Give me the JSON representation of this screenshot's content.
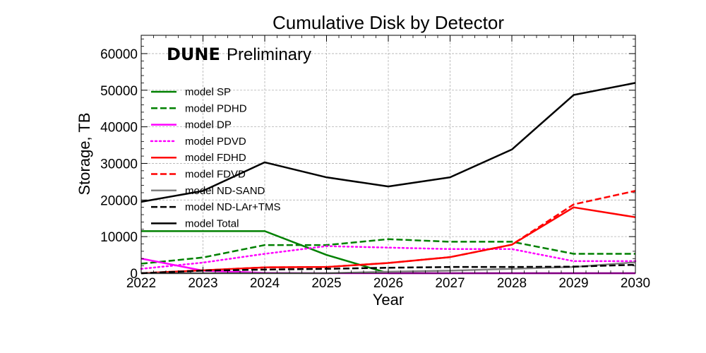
{
  "chart_data": {
    "type": "line",
    "title": "Cumulative Disk by Detector",
    "watermark_bold": "DUNE",
    "watermark_rest": "Preliminary",
    "xlabel": "Year",
    "ylabel": "Storage, TB",
    "xlim": [
      2022,
      2030
    ],
    "ylim": [
      0,
      65000
    ],
    "x_ticks": [
      "2022",
      "2023",
      "2024",
      "2025",
      "2026",
      "2027",
      "2028",
      "2029",
      "2030"
    ],
    "y_ticks": [
      "0",
      "10000",
      "20000",
      "30000",
      "40000",
      "50000",
      "60000"
    ],
    "grid": true,
    "legend_position": "upper-left",
    "x": [
      2022,
      2023,
      2024,
      2025,
      2026,
      2027,
      2028,
      2029,
      2030
    ],
    "series": [
      {
        "name": "model SP",
        "color": "#008000",
        "dash": "solid",
        "values": [
          11500,
          11500,
          11500,
          5000,
          0,
          0,
          0,
          0,
          0
        ]
      },
      {
        "name": "model PDHD",
        "color": "#008000",
        "dash": "dashed",
        "values": [
          2600,
          4300,
          7700,
          7700,
          9300,
          8600,
          8600,
          5300,
          5300
        ]
      },
      {
        "name": "model DP",
        "color": "#ff00ff",
        "dash": "solid",
        "values": [
          4000,
          700,
          100,
          0,
          0,
          0,
          0,
          0,
          0
        ]
      },
      {
        "name": "model PDVD",
        "color": "#ff00ff",
        "dash": "dotted",
        "values": [
          1200,
          2900,
          5300,
          7400,
          7000,
          6600,
          6600,
          3300,
          3300
        ]
      },
      {
        "name": "model FDHD",
        "color": "#ff0000",
        "dash": "solid",
        "values": [
          0,
          800,
          1600,
          1700,
          2800,
          4400,
          7800,
          18000,
          15300
        ]
      },
      {
        "name": "model FDVD",
        "color": "#ff0000",
        "dash": "dashed",
        "values": [
          0,
          800,
          1600,
          1700,
          2800,
          4400,
          7800,
          18800,
          22500
        ]
      },
      {
        "name": "model ND-SAND",
        "color": "#808080",
        "dash": "solid",
        "values": [
          0,
          0,
          0,
          0,
          400,
          700,
          1200,
          1700,
          3000
        ]
      },
      {
        "name": "model ND-LAr+TMS",
        "color": "#000000",
        "dash": "dashed",
        "values": [
          0,
          700,
          1000,
          1200,
          1500,
          1700,
          1700,
          1800,
          2300
        ]
      },
      {
        "name": "model Total",
        "color": "#000000",
        "dash": "solid",
        "values": [
          19500,
          22500,
          30300,
          26200,
          23700,
          26200,
          33800,
          48700,
          52000
        ]
      }
    ]
  }
}
